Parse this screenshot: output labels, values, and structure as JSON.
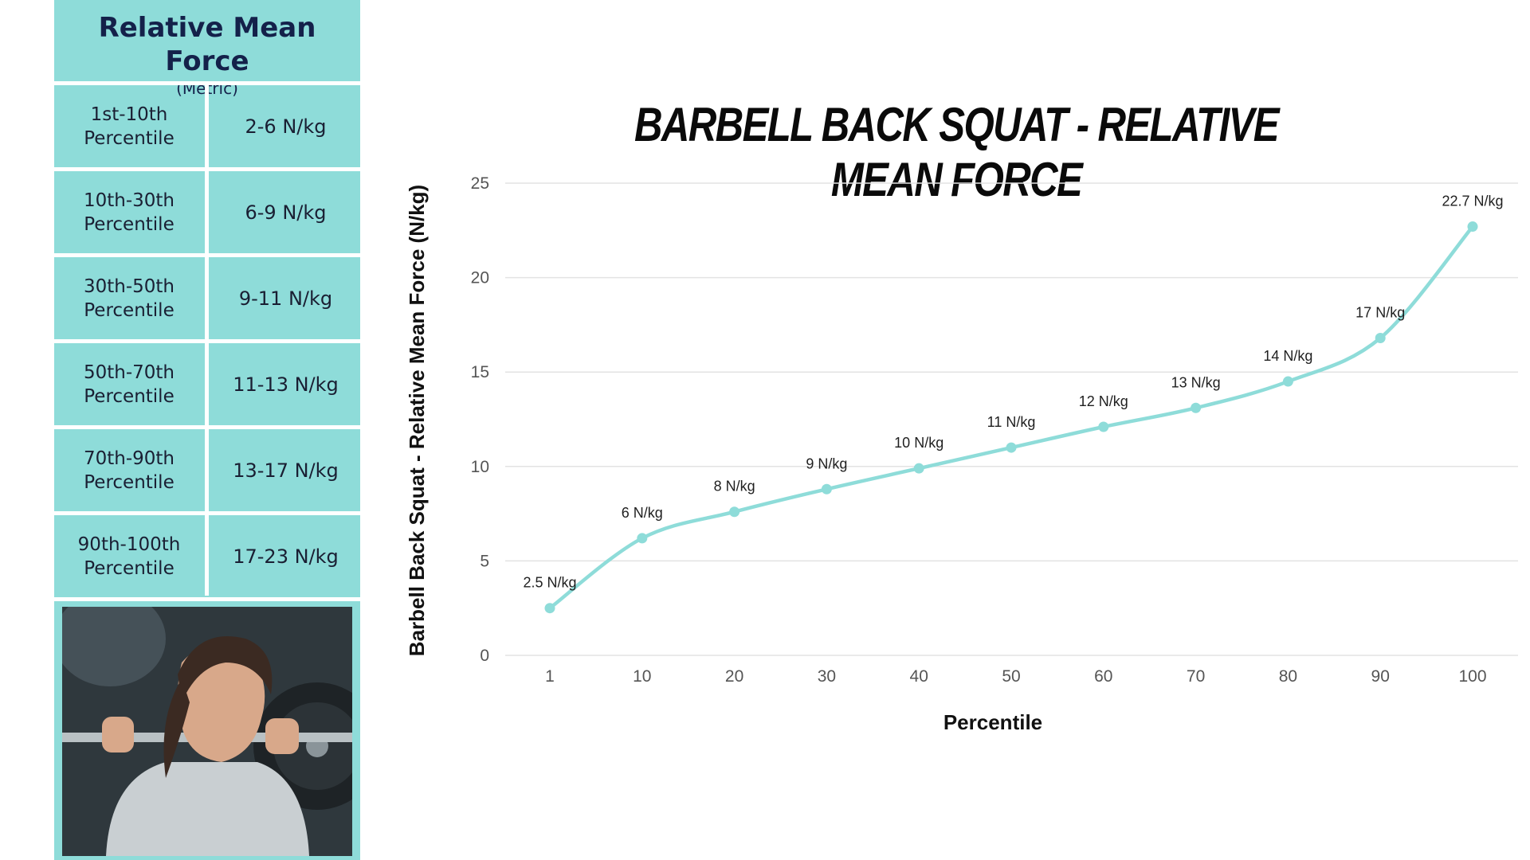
{
  "table": {
    "title": "Relative Mean Force",
    "subtitle": "(Metric)",
    "rows": [
      {
        "range": "1st-10th\nPercentile",
        "value": "2-6 N/kg"
      },
      {
        "range": "10th-30th\nPercentile",
        "value": "6-9 N/kg"
      },
      {
        "range": "30th-50th\nPercentile",
        "value": "9-11 N/kg"
      },
      {
        "range": "50th-70th\nPercentile",
        "value": "11-13 N/kg"
      },
      {
        "range": "70th-90th\nPercentile",
        "value": "13-17 N/kg"
      },
      {
        "range": "90th-100th\nPercentile",
        "value": "17-23 N/kg"
      }
    ]
  },
  "colors": {
    "panel": "#8edcd9",
    "line": "#8edcd9",
    "title_text": "#14214a"
  },
  "chart_data": {
    "type": "line",
    "title": "BARBELL BACK SQUAT - RELATIVE MEAN FORCE",
    "xlabel": "Percentile",
    "ylabel": "Barbell Back Squat - Relative Mean Force (N/kg)",
    "categories": [
      "1",
      "10",
      "20",
      "30",
      "40",
      "50",
      "60",
      "70",
      "80",
      "90",
      "100"
    ],
    "series": [
      {
        "values": [
          2.5,
          6.2,
          7.6,
          8.8,
          9.9,
          11.0,
          12.1,
          13.1,
          14.5,
          16.8,
          22.7
        ],
        "labels": [
          "2.5 N/kg",
          "6 N/kg",
          "8 N/kg",
          "9 N/kg",
          "10 N/kg",
          "11 N/kg",
          "12 N/kg",
          "13 N/kg",
          "14 N/kg",
          "17 N/kg",
          "22.7 N/kg"
        ]
      }
    ],
    "ylim": [
      0,
      25
    ],
    "yticks": [
      0,
      5,
      10,
      15,
      20,
      25
    ],
    "grid": true,
    "legend": "none"
  }
}
